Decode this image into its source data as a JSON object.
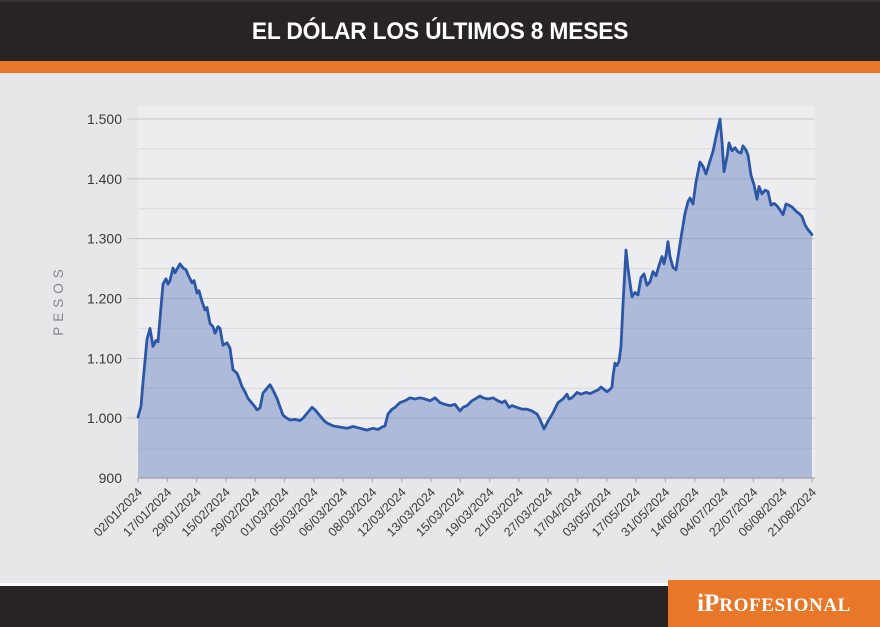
{
  "header": {
    "title": "EL DÓLAR LOS ÚLTIMOS 8 MESES"
  },
  "footer": {
    "brand_i": "i",
    "brand_p": "P",
    "brand_rest": "ROFESIONAL"
  },
  "colors": {
    "dark": "#282324",
    "accent_orange": "#e8772a",
    "line_blue": "#2b57a6",
    "area_fill": "rgba(120,144,198,0.55)",
    "plot_bg": "#ededef",
    "page_bg": "#e7e7e9",
    "grid_major": "#c5c5c9",
    "grid_minor": "#dadadd",
    "axis_line": "#a6a6ac",
    "tick_text": "#3a3a3e",
    "ylabel_text": "#85858a"
  },
  "chart_data": {
    "type": "area",
    "title": "EL DÓLAR LOS ÚLTIMOS 8 MESES",
    "ylabel": "PESOS",
    "xlabel": "",
    "ylim": [
      900,
      1500
    ],
    "grid": "horizontal, minor every 50, major every 100",
    "legend": "none",
    "y_ticks": [
      {
        "v": 900,
        "label": "900"
      },
      {
        "v": 1000,
        "label": "1.000"
      },
      {
        "v": 1100,
        "label": "1.100"
      },
      {
        "v": 1200,
        "label": "1.200"
      },
      {
        "v": 1300,
        "label": "1.300"
      },
      {
        "v": 1400,
        "label": "1.400"
      },
      {
        "v": 1500,
        "label": "1.500"
      }
    ],
    "categories": [
      "02/01/2024",
      "17/01/2024",
      "29/01/2024",
      "15/02/2024",
      "29/02/2024",
      "01/03/2024",
      "05/03/2024",
      "06/03/2024",
      "08/03/2024",
      "12/03/2024",
      "13/03/2024",
      "15/03/2024",
      "19/03/2024",
      "21/03/2024",
      "27/03/2024",
      "17/04/2024",
      "03/05/2024",
      "17/05/2024",
      "31/05/2024",
      "14/06/2024",
      "04/07/2024",
      "22/07/2024",
      "06/08/2024",
      "21/08/2024"
    ],
    "series": [
      {
        "name": "dolar",
        "y_unit": "pesos",
        "x_unit": "px from plot left edge (0-674), irregular daily series",
        "points": [
          [
            0,
            1002
          ],
          [
            3,
            1020
          ],
          [
            5,
            1060
          ],
          [
            9,
            1132
          ],
          [
            12,
            1150
          ],
          [
            15,
            1120
          ],
          [
            18,
            1130
          ],
          [
            20,
            1128
          ],
          [
            25,
            1224
          ],
          [
            28,
            1233
          ],
          [
            30,
            1224
          ],
          [
            32,
            1230
          ],
          [
            35,
            1251
          ],
          [
            37,
            1243
          ],
          [
            42,
            1258
          ],
          [
            45,
            1251
          ],
          [
            48,
            1248
          ],
          [
            50,
            1240
          ],
          [
            54,
            1226
          ],
          [
            56,
            1230
          ],
          [
            59,
            1209
          ],
          [
            61,
            1213
          ],
          [
            64,
            1195
          ],
          [
            67,
            1181
          ],
          [
            69,
            1185
          ],
          [
            72,
            1158
          ],
          [
            75,
            1153
          ],
          [
            77,
            1142
          ],
          [
            80,
            1153
          ],
          [
            82,
            1150
          ],
          [
            85,
            1122
          ],
          [
            89,
            1126
          ],
          [
            92,
            1117
          ],
          [
            95,
            1081
          ],
          [
            99,
            1075
          ],
          [
            101,
            1067
          ],
          [
            104,
            1053
          ],
          [
            107,
            1044
          ],
          [
            110,
            1033
          ],
          [
            114,
            1025
          ],
          [
            116,
            1021
          ],
          [
            119,
            1014
          ],
          [
            122,
            1017
          ],
          [
            125,
            1042
          ],
          [
            129,
            1050
          ],
          [
            132,
            1056
          ],
          [
            135,
            1047
          ],
          [
            139,
            1033
          ],
          [
            142,
            1019
          ],
          [
            145,
            1005
          ],
          [
            149,
            1000
          ],
          [
            152,
            997
          ],
          [
            157,
            998
          ],
          [
            162,
            996
          ],
          [
            165,
            1000
          ],
          [
            169,
            1008
          ],
          [
            174,
            1018
          ],
          [
            177,
            1014
          ],
          [
            182,
            1004
          ],
          [
            186,
            996
          ],
          [
            189,
            992
          ],
          [
            195,
            987
          ],
          [
            202,
            985
          ],
          [
            209,
            983
          ],
          [
            215,
            986
          ],
          [
            222,
            983
          ],
          [
            229,
            980
          ],
          [
            235,
            983
          ],
          [
            240,
            981
          ],
          [
            244,
            985
          ],
          [
            247,
            987
          ],
          [
            250,
            1007
          ],
          [
            254,
            1015
          ],
          [
            257,
            1018
          ],
          [
            262,
            1026
          ],
          [
            267,
            1029
          ],
          [
            272,
            1034
          ],
          [
            277,
            1032
          ],
          [
            282,
            1034
          ],
          [
            287,
            1032
          ],
          [
            292,
            1029
          ],
          [
            297,
            1034
          ],
          [
            302,
            1026
          ],
          [
            307,
            1023
          ],
          [
            312,
            1021
          ],
          [
            317,
            1023
          ],
          [
            322,
            1012
          ],
          [
            325,
            1018
          ],
          [
            329,
            1021
          ],
          [
            334,
            1029
          ],
          [
            339,
            1034
          ],
          [
            342,
            1037
          ],
          [
            345,
            1034
          ],
          [
            350,
            1032
          ],
          [
            355,
            1034
          ],
          [
            360,
            1029
          ],
          [
            364,
            1026
          ],
          [
            367,
            1029
          ],
          [
            371,
            1018
          ],
          [
            374,
            1021
          ],
          [
            379,
            1018
          ],
          [
            384,
            1015
          ],
          [
            389,
            1015
          ],
          [
            394,
            1012
          ],
          [
            399,
            1007
          ],
          [
            402,
            998
          ],
          [
            406,
            982
          ],
          [
            410,
            995
          ],
          [
            415,
            1009
          ],
          [
            420,
            1026
          ],
          [
            425,
            1032
          ],
          [
            429,
            1040
          ],
          [
            431,
            1032
          ],
          [
            434,
            1034
          ],
          [
            439,
            1043
          ],
          [
            443,
            1040
          ],
          [
            448,
            1043
          ],
          [
            452,
            1041
          ],
          [
            457,
            1045
          ],
          [
            460,
            1047
          ],
          [
            463,
            1052
          ],
          [
            466,
            1048
          ],
          [
            469,
            1044
          ],
          [
            472,
            1048
          ],
          [
            474,
            1052
          ],
          [
            475,
            1070
          ],
          [
            477,
            1092
          ],
          [
            479,
            1088
          ],
          [
            481,
            1095
          ],
          [
            483,
            1120
          ],
          [
            485,
            1190
          ],
          [
            488,
            1281
          ],
          [
            490,
            1250
          ],
          [
            492,
            1226
          ],
          [
            494,
            1203
          ],
          [
            497,
            1210
          ],
          [
            500,
            1206
          ],
          [
            503,
            1235
          ],
          [
            506,
            1241
          ],
          [
            509,
            1222
          ],
          [
            512,
            1228
          ],
          [
            515,
            1245
          ],
          [
            518,
            1238
          ],
          [
            521,
            1255
          ],
          [
            524,
            1270
          ],
          [
            526,
            1258
          ],
          [
            528,
            1272
          ],
          [
            530,
            1295
          ],
          [
            532,
            1270
          ],
          [
            535,
            1252
          ],
          [
            538,
            1248
          ],
          [
            541,
            1280
          ],
          [
            544,
            1312
          ],
          [
            547,
            1342
          ],
          [
            550,
            1362
          ],
          [
            552,
            1368
          ],
          [
            555,
            1358
          ],
          [
            558,
            1395
          ],
          [
            562,
            1428
          ],
          [
            565,
            1421
          ],
          [
            568,
            1408
          ],
          [
            572,
            1430
          ],
          [
            575,
            1446
          ],
          [
            578,
            1470
          ],
          [
            582,
            1500
          ],
          [
            584,
            1462
          ],
          [
            586,
            1412
          ],
          [
            589,
            1437
          ],
          [
            591,
            1460
          ],
          [
            594,
            1447
          ],
          [
            597,
            1452
          ],
          [
            600,
            1445
          ],
          [
            603,
            1443
          ],
          [
            605,
            1455
          ],
          [
            608,
            1448
          ],
          [
            610,
            1440
          ],
          [
            613,
            1406
          ],
          [
            616,
            1390
          ],
          [
            619,
            1366
          ],
          [
            621,
            1387
          ],
          [
            624,
            1375
          ],
          [
            627,
            1381
          ],
          [
            630,
            1379
          ],
          [
            633,
            1356
          ],
          [
            636,
            1359
          ],
          [
            639,
            1355
          ],
          [
            642,
            1348
          ],
          [
            645,
            1340
          ],
          [
            648,
            1358
          ],
          [
            651,
            1356
          ],
          [
            654,
            1353
          ],
          [
            658,
            1346
          ],
          [
            661,
            1342
          ],
          [
            664,
            1337
          ],
          [
            667,
            1323
          ],
          [
            670,
            1315
          ],
          [
            674,
            1307
          ]
        ]
      }
    ]
  }
}
